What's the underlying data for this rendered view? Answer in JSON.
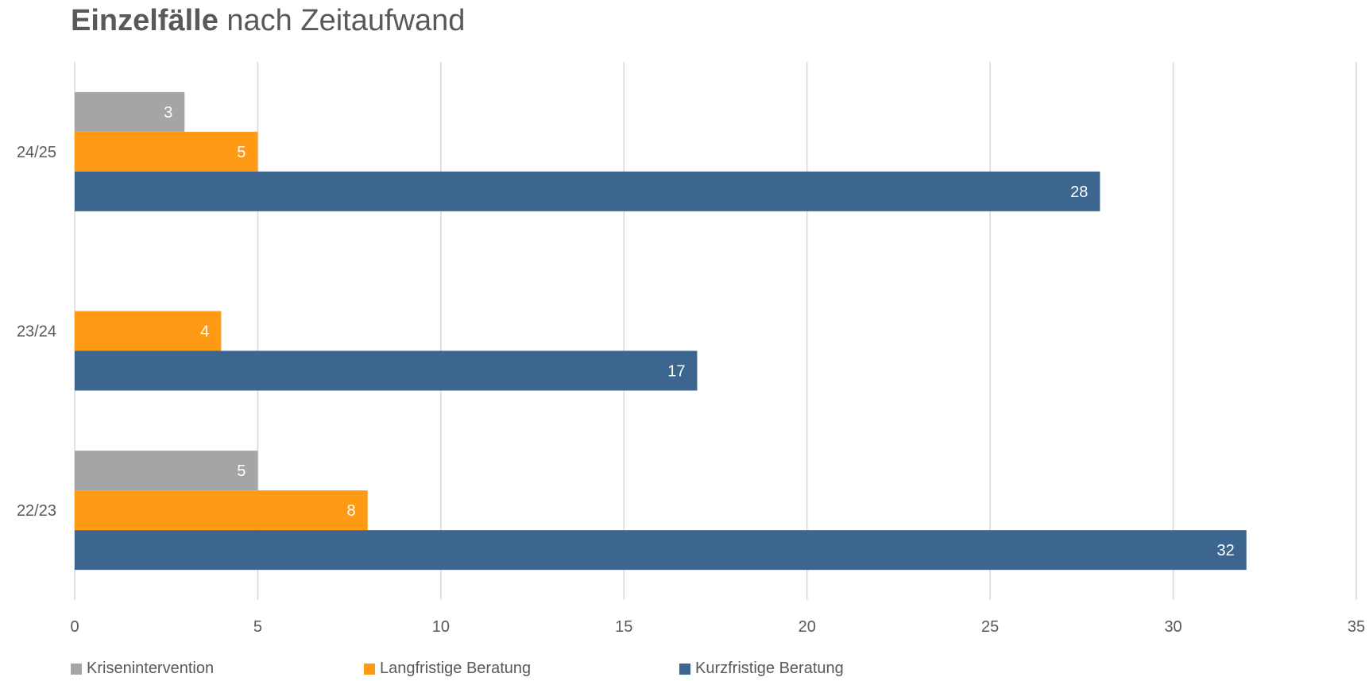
{
  "chart_data": {
    "type": "bar",
    "orientation": "horizontal",
    "title_bold": "Einzelfälle",
    "title_rest": " nach Zeitaufwand",
    "categories": [
      "24/25",
      "23/24",
      "22/23"
    ],
    "series": [
      {
        "name": "Kriseninterventi­on",
        "color": "#a5a5a5",
        "values": [
          3,
          null,
          5
        ]
      },
      {
        "name": "Langfristige Beratung",
        "color": "#ff9a14",
        "values": [
          5,
          4,
          8
        ]
      },
      {
        "name": "Kurzfristige Beratung",
        "color": "#3c6690",
        "values": [
          28,
          17,
          32
        ]
      }
    ],
    "xlim": [
      0,
      35
    ],
    "xticks": [
      0,
      5,
      10,
      15,
      20,
      25,
      30,
      35
    ],
    "grid": true,
    "legend_position": "bottom-left",
    "data_labels": true
  }
}
